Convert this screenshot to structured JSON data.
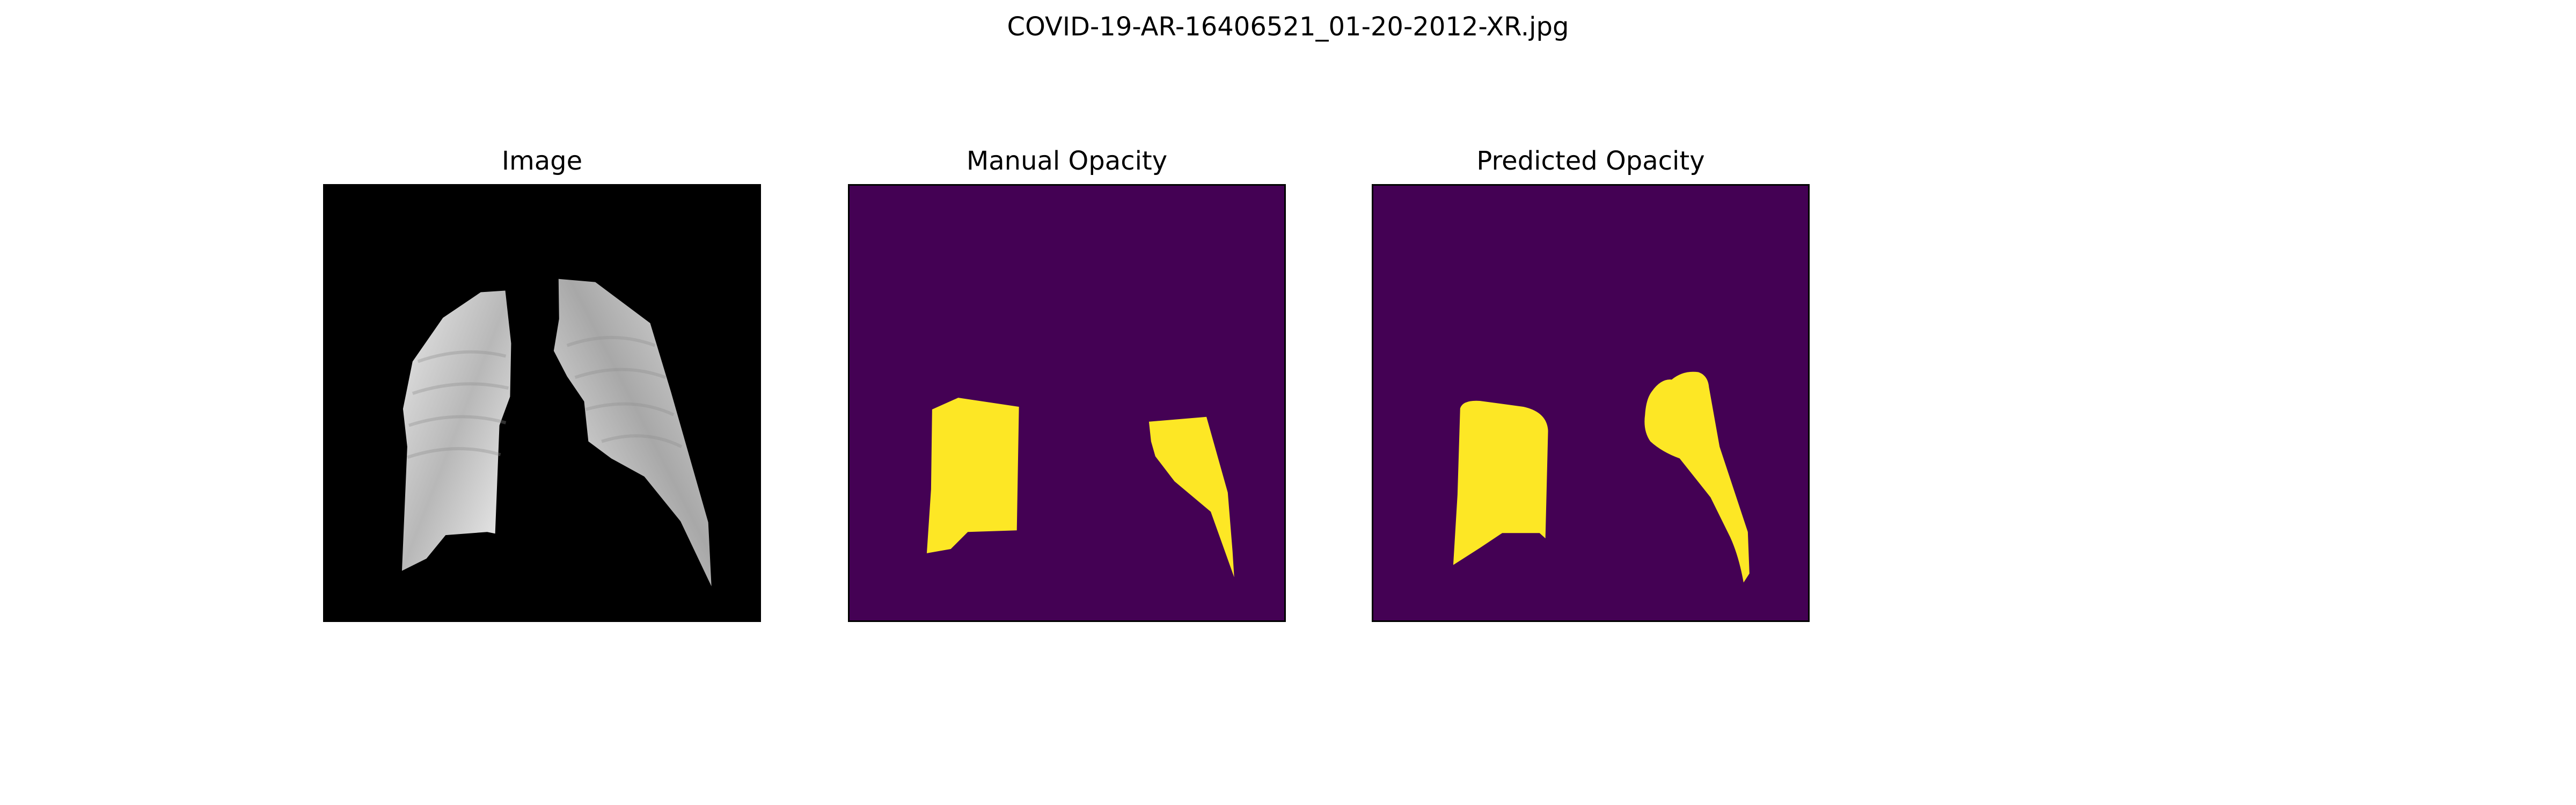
{
  "figure": {
    "suptitle": "COVID-19-AR-16406521_01-20-2012-XR.jpg"
  },
  "panels": [
    {
      "title": "Image",
      "content": "grayscale lung x-ray (lungs segmented on black background)"
    },
    {
      "title": "Manual Opacity",
      "content": "binary opacity mask"
    },
    {
      "title": "Predicted Opacity",
      "content": "binary opacity mask"
    }
  ],
  "colors": {
    "mask_background": "#440154",
    "mask_foreground": "#fde725",
    "image_background": "#000000"
  }
}
